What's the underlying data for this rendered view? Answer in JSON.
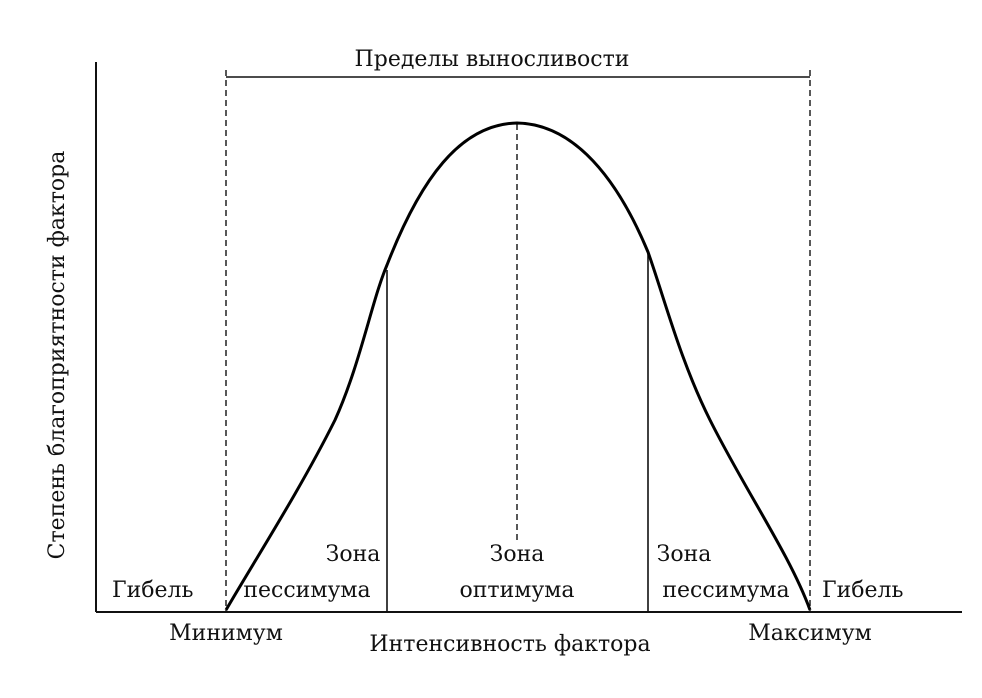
{
  "diagram": {
    "tolerance_limits_label": "Пределы выносливости",
    "y_axis_label": "Степень благоприятности фактора",
    "x_axis_label": "Интенсивность фактора",
    "death_left_label": "Гибель",
    "death_right_label": "Гибель",
    "minimum_label": "Минимум",
    "maximum_label": "Максимум",
    "pessimum_left": {
      "line1": "Зона",
      "line2": "пессимума"
    },
    "optimum": {
      "line1": "Зона",
      "line2": "оптимума"
    },
    "pessimum_right": {
      "line1": "Зона",
      "line2": "пессимума"
    },
    "line_color": "#000000"
  }
}
